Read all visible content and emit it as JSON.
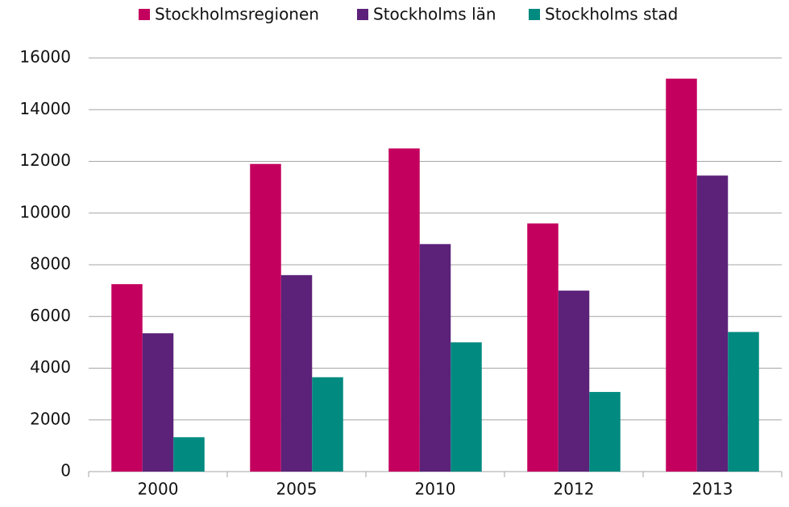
{
  "chart_data": {
    "type": "bar",
    "categories": [
      "2000",
      "2005",
      "2010",
      "2012",
      "2013"
    ],
    "series": [
      {
        "name": "Stockholmsregionen",
        "color": "#c4005e",
        "values": [
          7250,
          11900,
          12500,
          9600,
          15200
        ]
      },
      {
        "name": "Stockholms län",
        "color": "#5c2279",
        "values": [
          5350,
          7600,
          8800,
          7000,
          11450
        ]
      },
      {
        "name": "Stockholms stad",
        "color": "#008a80",
        "values": [
          1330,
          3650,
          5000,
          3080,
          5400
        ]
      }
    ],
    "ylim": [
      0,
      16000
    ],
    "yticks": [
      0,
      2000,
      4000,
      6000,
      8000,
      10000,
      12000,
      14000,
      16000
    ],
    "grid": true,
    "legend": "top"
  }
}
